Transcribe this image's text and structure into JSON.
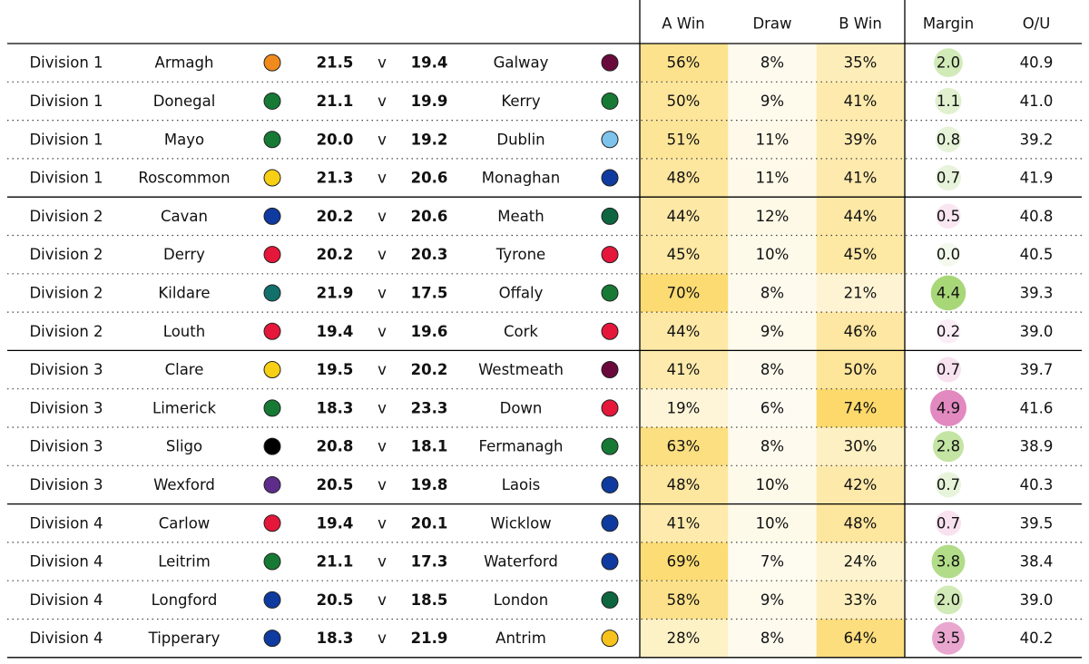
{
  "chart_data": {
    "type": "table",
    "columns": {
      "a_win": "A Win",
      "draw": "Draw",
      "b_win": "B Win",
      "margin": "Margin",
      "ou": "O/U"
    },
    "separator": "v",
    "colors": {
      "heat_high": "#fcd96a",
      "heat_low": "#fefdf6",
      "margin_positive": "#9fd36b",
      "margin_negative": "#e289c0",
      "rules": "#000000",
      "dotted_rules": "#444444"
    },
    "rows": [
      {
        "division": "Division 1",
        "team_a": "Armagh",
        "color_a": "#f18a1d",
        "score_a": "21.5",
        "score_b": "19.4",
        "team_b": "Galway",
        "color_b": "#6a0a3c",
        "a_win": "56%",
        "draw": "8%",
        "b_win": "35%",
        "margin": "2.0",
        "margin_value": 2.0,
        "ou": "40.9"
      },
      {
        "division": "Division 1",
        "team_a": "Donegal",
        "color_a": "#167a35",
        "score_a": "21.1",
        "score_b": "19.9",
        "team_b": "Kerry",
        "color_b": "#167a35",
        "a_win": "50%",
        "draw": "9%",
        "b_win": "41%",
        "margin": "1.1",
        "margin_value": 1.1,
        "ou": "41.0"
      },
      {
        "division": "Division 1",
        "team_a": "Mayo",
        "color_a": "#167a35",
        "score_a": "20.0",
        "score_b": "19.2",
        "team_b": "Dublin",
        "color_b": "#7ec3ec",
        "a_win": "51%",
        "draw": "11%",
        "b_win": "39%",
        "margin": "0.8",
        "margin_value": 0.8,
        "ou": "39.2"
      },
      {
        "division": "Division 1",
        "team_a": "Roscommon",
        "color_a": "#f7cf14",
        "score_a": "21.3",
        "score_b": "20.6",
        "team_b": "Monaghan",
        "color_b": "#0f3a9f",
        "a_win": "48%",
        "draw": "11%",
        "b_win": "41%",
        "margin": "0.7",
        "margin_value": 0.7,
        "ou": "41.9"
      },
      {
        "division": "Division 2",
        "team_a": "Cavan",
        "color_a": "#0f3a9f",
        "score_a": "20.2",
        "score_b": "20.6",
        "team_b": "Meath",
        "color_b": "#0d6640",
        "a_win": "44%",
        "draw": "12%",
        "b_win": "44%",
        "margin": "0.5",
        "margin_value": -0.5,
        "ou": "40.8"
      },
      {
        "division": "Division 2",
        "team_a": "Derry",
        "color_a": "#e5173a",
        "score_a": "20.2",
        "score_b": "20.3",
        "team_b": "Tyrone",
        "color_b": "#e5173a",
        "a_win": "45%",
        "draw": "10%",
        "b_win": "45%",
        "margin": "0.0",
        "margin_value": 0.0,
        "ou": "40.5"
      },
      {
        "division": "Division 2",
        "team_a": "Kildare",
        "color_a": "#11706a",
        "score_a": "21.9",
        "score_b": "17.5",
        "team_b": "Offaly",
        "color_b": "#167a35",
        "a_win": "70%",
        "draw": "8%",
        "b_win": "21%",
        "margin": "4.4",
        "margin_value": 4.4,
        "ou": "39.3"
      },
      {
        "division": "Division 2",
        "team_a": "Louth",
        "color_a": "#e5173a",
        "score_a": "19.4",
        "score_b": "19.6",
        "team_b": "Cork",
        "color_b": "#e5173a",
        "a_win": "44%",
        "draw": "9%",
        "b_win": "46%",
        "margin": "0.2",
        "margin_value": -0.2,
        "ou": "39.0"
      },
      {
        "division": "Division 3",
        "team_a": "Clare",
        "color_a": "#f7cf14",
        "score_a": "19.5",
        "score_b": "20.2",
        "team_b": "Westmeath",
        "color_b": "#6a0a3c",
        "a_win": "41%",
        "draw": "8%",
        "b_win": "50%",
        "margin": "0.7",
        "margin_value": -0.7,
        "ou": "39.7"
      },
      {
        "division": "Division 3",
        "team_a": "Limerick",
        "color_a": "#167a35",
        "score_a": "18.3",
        "score_b": "23.3",
        "team_b": "Down",
        "color_b": "#e5173a",
        "a_win": "19%",
        "draw": "6%",
        "b_win": "74%",
        "margin": "4.9",
        "margin_value": -4.9,
        "ou": "41.6"
      },
      {
        "division": "Division 3",
        "team_a": "Sligo",
        "color_a": "#000000",
        "score_a": "20.8",
        "score_b": "18.1",
        "team_b": "Fermanagh",
        "color_b": "#167a35",
        "a_win": "63%",
        "draw": "8%",
        "b_win": "30%",
        "margin": "2.8",
        "margin_value": 2.8,
        "ou": "38.9"
      },
      {
        "division": "Division 3",
        "team_a": "Wexford",
        "color_a": "#5e2d8c",
        "score_a": "20.5",
        "score_b": "19.8",
        "team_b": "Laois",
        "color_b": "#0f3a9f",
        "a_win": "48%",
        "draw": "10%",
        "b_win": "42%",
        "margin": "0.7",
        "margin_value": 0.7,
        "ou": "40.3"
      },
      {
        "division": "Division 4",
        "team_a": "Carlow",
        "color_a": "#e5173a",
        "score_a": "19.4",
        "score_b": "20.1",
        "team_b": "Wicklow",
        "color_b": "#0f3a9f",
        "a_win": "41%",
        "draw": "10%",
        "b_win": "48%",
        "margin": "0.7",
        "margin_value": -0.7,
        "ou": "39.5"
      },
      {
        "division": "Division 4",
        "team_a": "Leitrim",
        "color_a": "#167a35",
        "score_a": "21.1",
        "score_b": "17.3",
        "team_b": "Waterford",
        "color_b": "#0f3a9f",
        "a_win": "69%",
        "draw": "7%",
        "b_win": "24%",
        "margin": "3.8",
        "margin_value": 3.8,
        "ou": "38.4"
      },
      {
        "division": "Division 4",
        "team_a": "Longford",
        "color_a": "#0f3a9f",
        "score_a": "20.5",
        "score_b": "18.5",
        "team_b": "London",
        "color_b": "#0d6640",
        "a_win": "58%",
        "draw": "9%",
        "b_win": "33%",
        "margin": "2.0",
        "margin_value": 2.0,
        "ou": "39.0"
      },
      {
        "division": "Division 4",
        "team_a": "Tipperary",
        "color_a": "#0f3a9f",
        "score_a": "18.3",
        "score_b": "21.9",
        "team_b": "Antrim",
        "color_b": "#f7c21c",
        "a_win": "28%",
        "draw": "8%",
        "b_win": "64%",
        "margin": "3.5",
        "margin_value": -3.5,
        "ou": "40.2"
      }
    ]
  }
}
